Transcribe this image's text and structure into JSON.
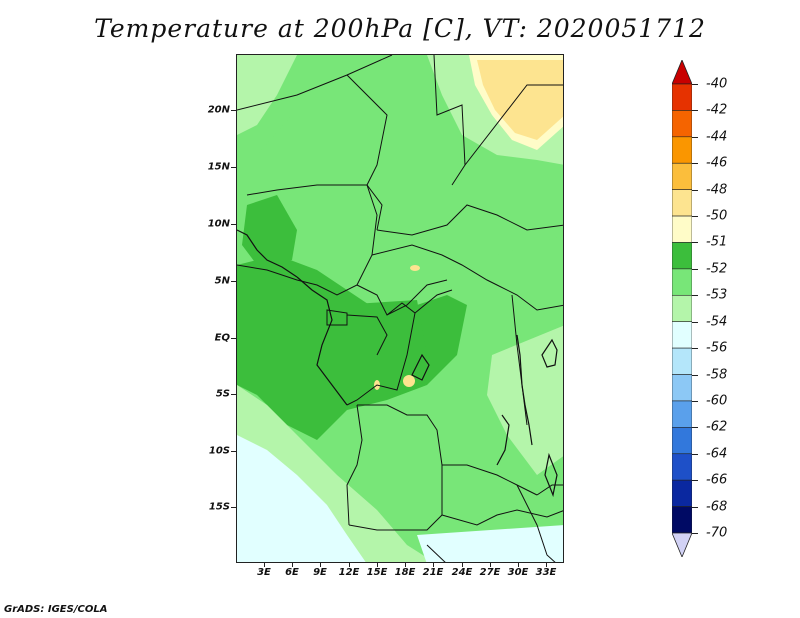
{
  "title": "Temperature at 200hPa [C], VT: 2020051712",
  "credit": "GrADS: IGES/COLA",
  "lat_labels": [
    "20N",
    "15N",
    "10N",
    "5N",
    "EQ",
    "5S",
    "10S",
    "15S"
  ],
  "lon_labels": [
    "3E",
    "6E",
    "9E",
    "12E",
    "15E",
    "18E",
    "21E",
    "24E",
    "27E",
    "30E",
    "33E"
  ],
  "colorbar": {
    "labels": [
      "-40",
      "-42",
      "-44",
      "-46",
      "-48",
      "-50",
      "-51",
      "-52",
      "-53",
      "-54",
      "-56",
      "-58",
      "-60",
      "-62",
      "-64",
      "-66",
      "-68",
      "-70"
    ],
    "colors": [
      "#c80000",
      "#e63200",
      "#f56400",
      "#fa9600",
      "#fbbe3c",
      "#fde490",
      "#fffcc8",
      "#3cbe3c",
      "#78e678",
      "#b4f5aa",
      "#e1ffff",
      "#b4e6fa",
      "#8cc8f5",
      "#5aa0eb",
      "#3278dc",
      "#1e50c8",
      "#0a28a0",
      "#000a64",
      "#d2d2f5"
    ]
  },
  "colors": {
    "dark_green": "#3cbe3c",
    "mid_green": "#78e678",
    "light_green": "#b4f5aa",
    "pale_cyan": "#e1ffff",
    "pale_yellow": "#fde490",
    "light_yellow": "#fffcc8"
  }
}
